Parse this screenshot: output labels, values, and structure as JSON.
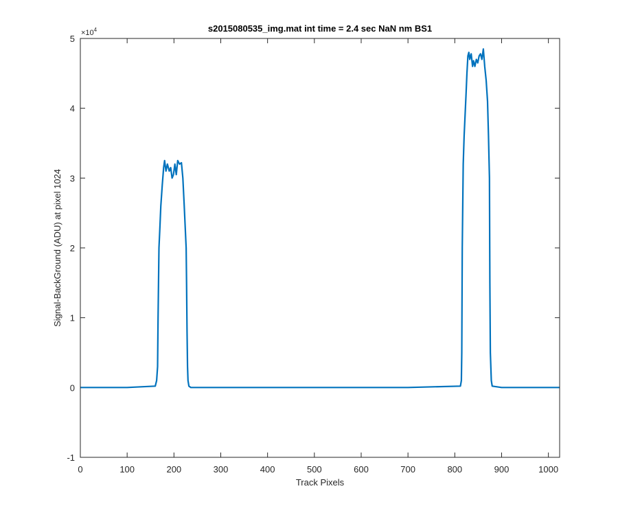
{
  "chart_data": {
    "type": "line",
    "title": "s2015080535_img.mat int time = 2.4 sec  NaN nm BS1",
    "xlabel": "Track Pixels",
    "ylabel": "Signal-BackGround (ADU) at pixel 1024",
    "xlim": [
      0,
      1024
    ],
    "ylim": [
      -1,
      5
    ],
    "y_scale_label": "×10",
    "y_scale_exponent": "4",
    "xticks": [
      0,
      100,
      200,
      300,
      400,
      500,
      600,
      700,
      800,
      900,
      1000
    ],
    "xtick_labels": [
      "0",
      "100",
      "200",
      "300",
      "400",
      "500",
      "600",
      "700",
      "800",
      "900",
      "1000"
    ],
    "yticks": [
      -1,
      0,
      1,
      2,
      3,
      4,
      5
    ],
    "ytick_labels": [
      "-1",
      "0",
      "1",
      "2",
      "3",
      "4",
      "5"
    ],
    "grid": false,
    "series_color": "#0072BD",
    "series": [
      {
        "x": [
          0,
          100,
          160,
          163,
          165,
          166,
          168,
          170,
          172,
          175,
          178,
          180,
          183,
          186,
          190,
          193,
          196,
          199,
          202,
          205,
          208,
          212,
          216,
          219,
          222,
          224,
          226,
          227,
          228,
          229,
          230,
          232,
          236,
          300,
          400,
          500,
          600,
          700,
          812,
          814,
          815,
          816,
          818,
          820,
          822,
          824,
          826,
          828,
          830,
          832,
          835,
          838,
          840,
          843,
          846,
          849,
          852,
          855,
          858,
          861,
          864,
          867,
          870,
          872,
          874,
          875,
          876,
          878,
          880,
          900,
          1000,
          1024
        ],
        "y": [
          0,
          0,
          0.02,
          0.1,
          0.3,
          1.0,
          2.0,
          2.3,
          2.6,
          2.9,
          3.15,
          3.25,
          3.1,
          3.2,
          3.1,
          3.15,
          3.0,
          3.05,
          3.2,
          3.05,
          3.25,
          3.2,
          3.22,
          3.0,
          2.6,
          2.3,
          2.0,
          1.5,
          0.8,
          0.3,
          0.1,
          0.02,
          0,
          0,
          0,
          0,
          0,
          0,
          0.02,
          0.1,
          0.5,
          2.0,
          3.2,
          3.6,
          3.9,
          4.2,
          4.5,
          4.75,
          4.8,
          4.7,
          4.78,
          4.6,
          4.68,
          4.6,
          4.7,
          4.65,
          4.75,
          4.78,
          4.7,
          4.85,
          4.6,
          4.4,
          4.1,
          3.6,
          3.0,
          1.5,
          0.5,
          0.1,
          0.02,
          0,
          0,
          0
        ]
      }
    ]
  }
}
